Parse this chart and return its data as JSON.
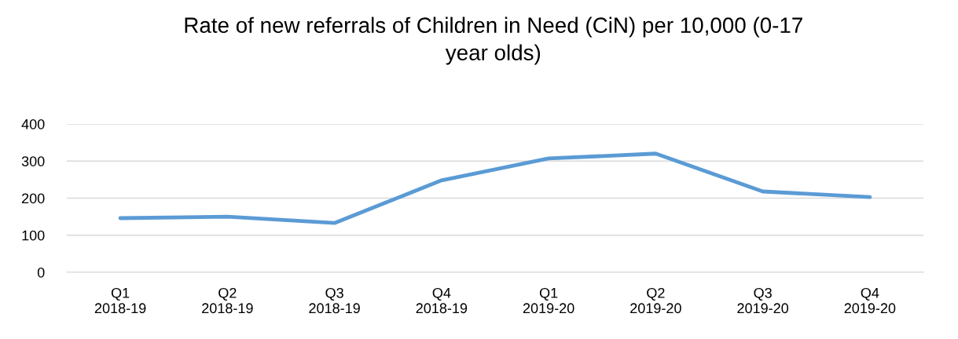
{
  "chart_data": {
    "type": "line",
    "title": "Rate of new referrals of Children in Need (CiN) per 10,000 (0-17\nyear olds)",
    "categories": [
      "Q1\n2018-19",
      "Q2\n2018-19",
      "Q3\n2018-19",
      "Q4\n2018-19",
      "Q1\n2019-20",
      "Q2\n2019-20",
      "Q3\n2019-20",
      "Q4\n2019-20"
    ],
    "series": [
      {
        "color": "#5b9bd5",
        "values": [
          146,
          150,
          133,
          248,
          307,
          320,
          218,
          203
        ]
      }
    ],
    "ylim": [
      0,
      400
    ],
    "yticks": [
      0,
      100,
      200,
      300,
      400
    ],
    "grid": "y",
    "marker": "none",
    "line_style": "solid"
  }
}
